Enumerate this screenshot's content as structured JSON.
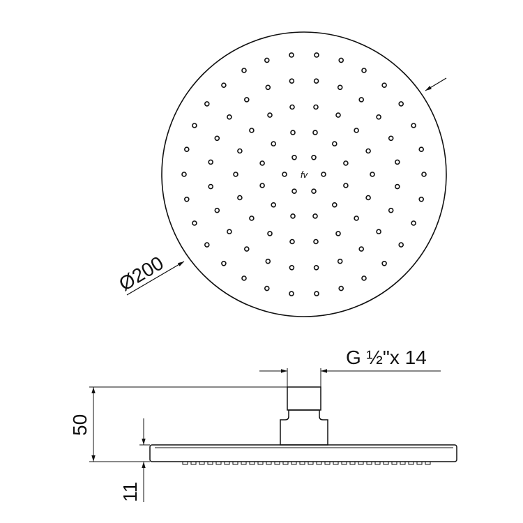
{
  "drawing": {
    "diameter_label": "Ø200",
    "thread_label": "G ½\"x 14",
    "height_label": "50",
    "head_thickness_label": "11",
    "logo_text": "fv",
    "colors": {
      "line": "#111111",
      "background": "#ffffff"
    }
  }
}
